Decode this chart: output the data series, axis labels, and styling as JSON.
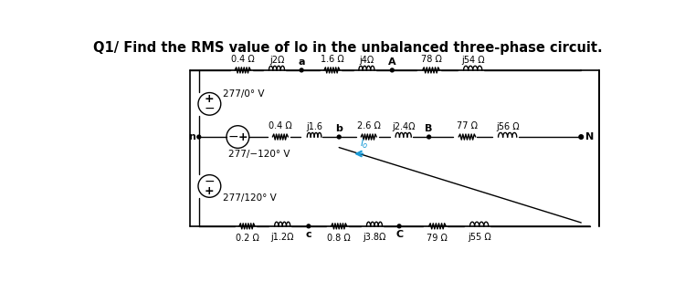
{
  "title": "Q1/ Find the RMS value of lo in the unbalanced three-phase circuit.",
  "title_fontsize": 10.5,
  "bg_color": "#ffffff",
  "fig_width": 7.5,
  "fig_height": 3.2,
  "dpi": 100,
  "top_line": {
    "resistors": [
      "0.4 Ω",
      "j2Ω",
      "1.6 Ω",
      "j4Ω",
      "78 Ω",
      "j54 Ω"
    ],
    "node_a": "a",
    "node_A": "A",
    "source_label": "277/0° V"
  },
  "mid_line": {
    "resistors": [
      "0.4 Ω",
      "j1.6",
      "2.6 Ω",
      "j2.4Ω",
      "77 Ω",
      "j56 Ω"
    ],
    "node_b": "b",
    "node_B": "B",
    "node_n": "n",
    "node_N": "N",
    "source_label": "277/−120° V"
  },
  "bot_line": {
    "resistors": [
      "0.2 Ω",
      "j1.2Ω",
      "0.8 Ω",
      "j3.8Ω",
      "79 Ω",
      "j55 Ω"
    ],
    "node_c": "c",
    "node_C": "C",
    "source_label": "277/120° V"
  },
  "io_label": "I",
  "io_sub": "o"
}
